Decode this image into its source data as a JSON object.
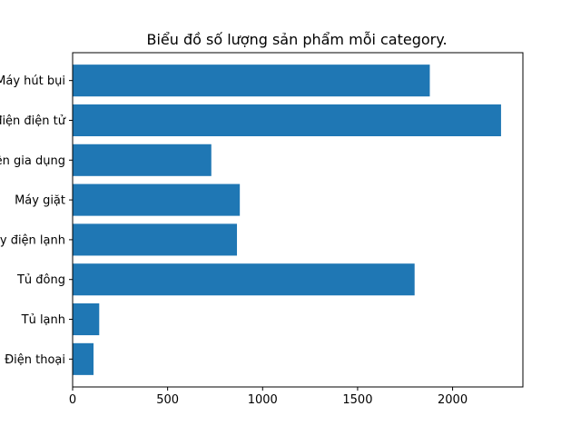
{
  "chart_data": {
    "type": "bar",
    "orientation": "horizontal",
    "title": "Biểu đồ số lượng sản phẩm mỗi category.",
    "categories": [
      "Điện thoại",
      "Tủ lạnh",
      "Tủ đông",
      "Máy điện lạnh",
      "Máy giặt",
      "Đồ điện gia dụng",
      "Thiết bị điện điện tử",
      "Máy hút bụi"
    ],
    "values": [
      110,
      140,
      1800,
      865,
      880,
      730,
      2255,
      1880
    ],
    "xlim": [
      0,
      2370
    ],
    "xticks": [
      0,
      500,
      1000,
      1500,
      2000
    ],
    "xtick_labels": [
      "0",
      "500",
      "1000",
      "1500",
      "2000"
    ],
    "grid": false,
    "bar_color": "#1f77b4"
  }
}
